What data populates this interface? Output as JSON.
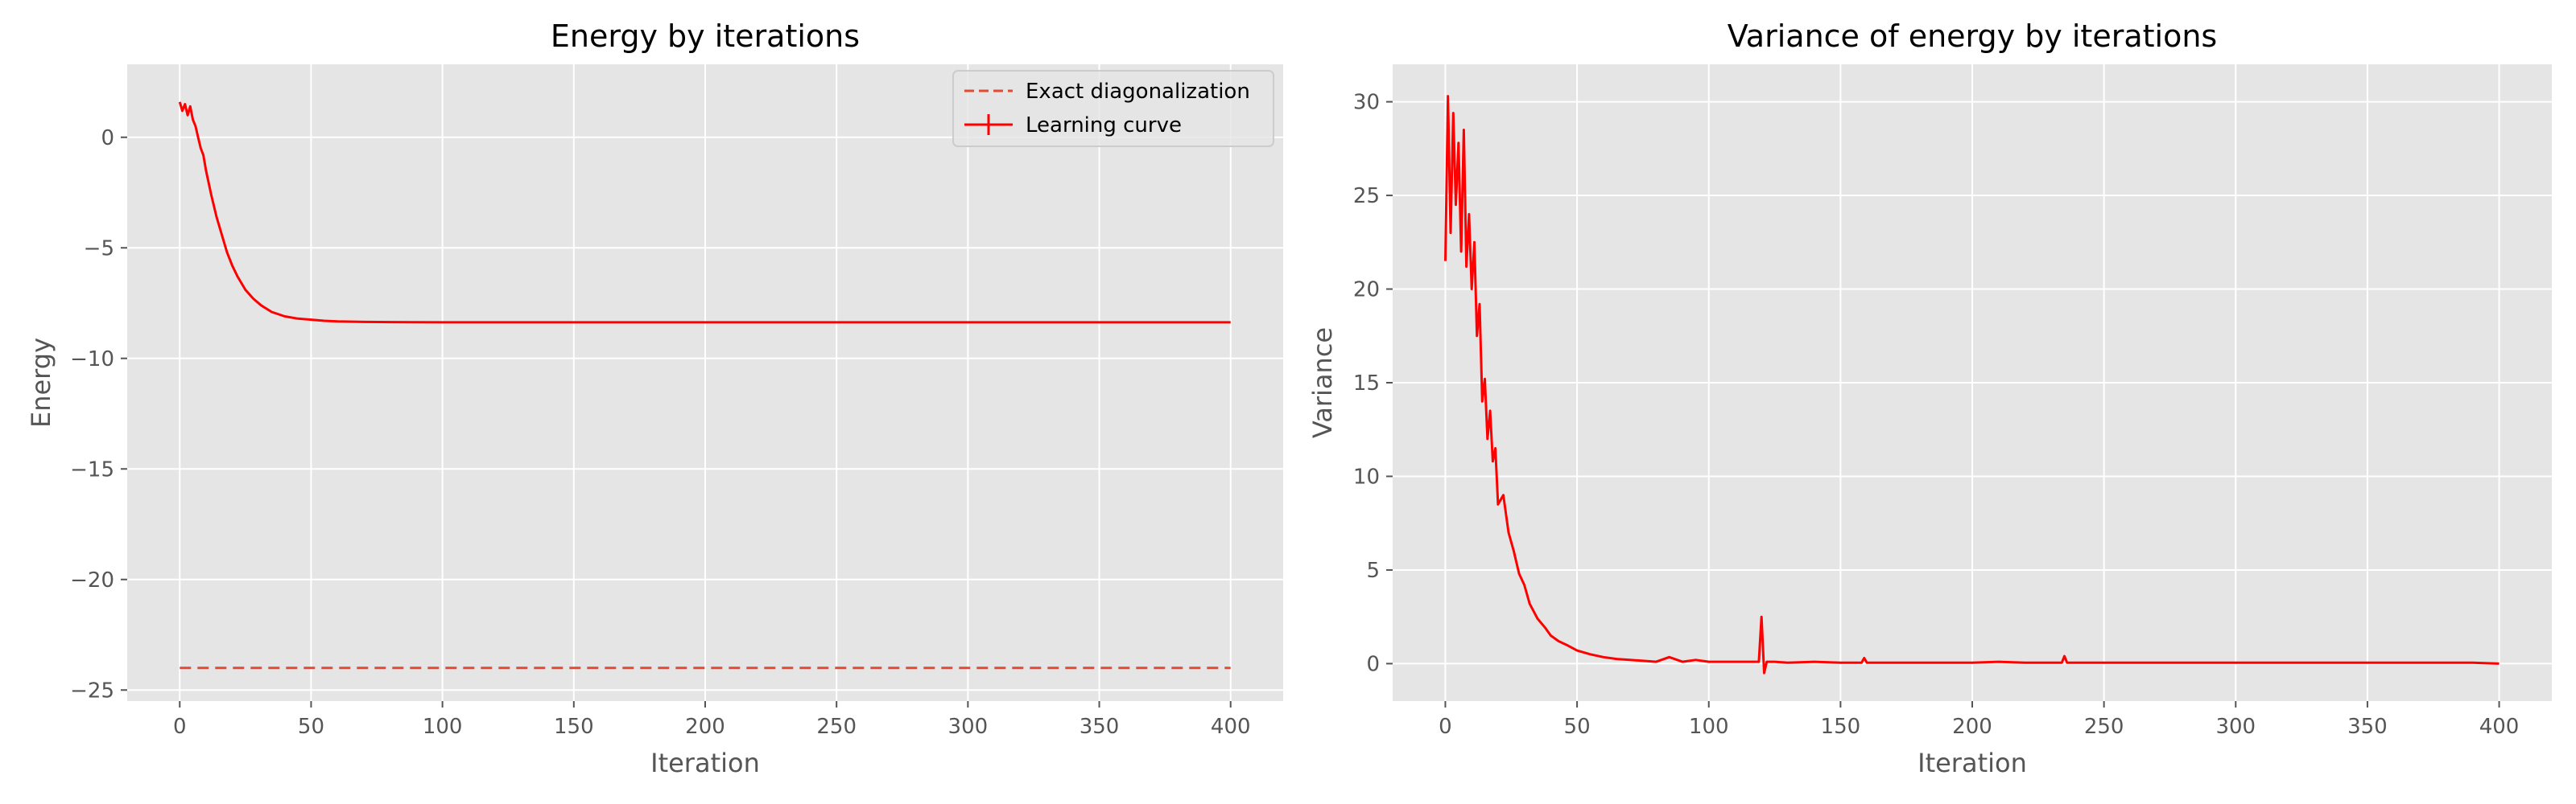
{
  "colors": {
    "panel_bg": "#e5e5e5",
    "grid": "#ffffff",
    "tick_text": "#555555",
    "learning_curve": "#ff0000",
    "exact": "#e24a33",
    "legend_border": "#cccccc"
  },
  "chart_data": [
    {
      "type": "line",
      "title": "Energy by iterations",
      "xlabel": "Iteration",
      "ylabel": "Energy",
      "xlim": [
        -20,
        420
      ],
      "ylim": [
        -25.5,
        3.3
      ],
      "xticks": [
        0,
        50,
        100,
        150,
        200,
        250,
        300,
        350,
        400
      ],
      "yticks": [
        0,
        -5,
        -10,
        -15,
        -20,
        -25
      ],
      "grid": true,
      "legend": {
        "placement": "top-right",
        "entries": [
          {
            "label": "Exact diagonalization",
            "style": "dashed"
          },
          {
            "label": "Learning curve",
            "style": "solid-errorbar"
          }
        ]
      },
      "series": [
        {
          "name": "Exact diagonalization",
          "x": [
            0,
            400
          ],
          "y": [
            -24.0,
            -24.0
          ]
        },
        {
          "name": "Learning curve",
          "x": [
            0,
            1,
            2,
            3,
            4,
            5,
            6,
            7,
            8,
            9,
            10,
            12,
            14,
            16,
            18,
            20,
            22,
            25,
            28,
            31,
            35,
            40,
            45,
            50,
            55,
            60,
            70,
            80,
            100,
            150,
            200,
            250,
            300,
            350,
            400
          ],
          "y": [
            1.6,
            1.2,
            1.5,
            1.0,
            1.4,
            0.8,
            0.5,
            0.0,
            -0.5,
            -0.8,
            -1.5,
            -2.6,
            -3.6,
            -4.4,
            -5.2,
            -5.8,
            -6.3,
            -6.9,
            -7.3,
            -7.6,
            -7.9,
            -8.1,
            -8.2,
            -8.25,
            -8.3,
            -8.33,
            -8.35,
            -8.36,
            -8.37,
            -8.37,
            -8.37,
            -8.37,
            -8.37,
            -8.37,
            -8.37
          ]
        }
      ]
    },
    {
      "type": "line",
      "title": "Variance of energy by iterations",
      "xlabel": "Iteration",
      "ylabel": "Variance",
      "xlim": [
        -20,
        420
      ],
      "ylim": [
        -2,
        32
      ],
      "xticks": [
        0,
        50,
        100,
        150,
        200,
        250,
        300,
        350,
        400
      ],
      "yticks": [
        0,
        5,
        10,
        15,
        20,
        25,
        30
      ],
      "grid": true,
      "series": [
        {
          "name": "",
          "x": [
            0,
            1,
            2,
            3,
            4,
            5,
            6,
            7,
            8,
            9,
            10,
            11,
            12,
            13,
            14,
            15,
            16,
            17,
            18,
            19,
            20,
            22,
            24,
            26,
            28,
            30,
            32,
            35,
            38,
            40,
            43,
            46,
            50,
            55,
            60,
            65,
            70,
            75,
            80,
            85,
            90,
            95,
            100,
            110,
            119,
            120,
            121,
            122,
            125,
            130,
            140,
            150,
            158,
            159,
            160,
            170,
            180,
            190,
            200,
            210,
            220,
            234,
            235,
            236,
            250,
            260,
            270,
            280,
            290,
            300,
            310,
            320,
            330,
            340,
            350,
            360,
            370,
            380,
            390,
            400
          ],
          "y": [
            21.5,
            30.3,
            23.0,
            29.4,
            24.5,
            27.8,
            22.0,
            28.5,
            21.2,
            24.0,
            20.0,
            22.5,
            17.5,
            19.2,
            14.0,
            15.2,
            12.0,
            13.5,
            10.8,
            11.5,
            8.5,
            9.0,
            7.0,
            6.0,
            4.8,
            4.2,
            3.2,
            2.4,
            1.9,
            1.5,
            1.2,
            1.0,
            0.7,
            0.5,
            0.35,
            0.25,
            0.2,
            0.15,
            0.1,
            0.35,
            0.1,
            0.2,
            0.1,
            0.1,
            0.1,
            2.5,
            -0.5,
            0.1,
            0.1,
            0.05,
            0.1,
            0.05,
            0.05,
            0.3,
            0.05,
            0.05,
            0.05,
            0.05,
            0.05,
            0.1,
            0.05,
            0.05,
            0.4,
            0.05,
            0.05,
            0.05,
            0.05,
            0.05,
            0.05,
            0.05,
            0.05,
            0.05,
            0.05,
            0.05,
            0.05,
            0.05,
            0.05,
            0.05,
            0.05,
            0.0
          ]
        }
      ]
    }
  ]
}
